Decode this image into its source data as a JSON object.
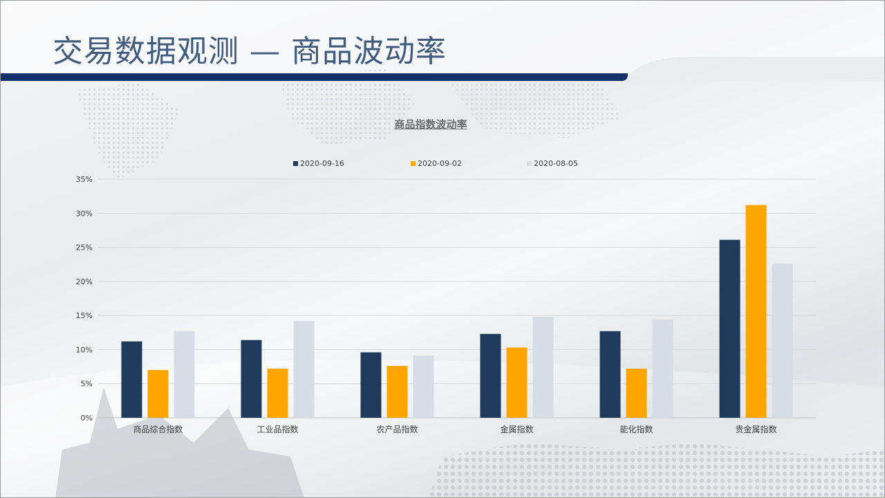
{
  "slide": {
    "title": "交易数据观测 — 商品波动率"
  },
  "colors": {
    "title_bar": "#13306a",
    "title_text": "#3f5a7c"
  },
  "chart_data": {
    "type": "bar",
    "title": "商品指数波动率",
    "xlabel": "",
    "ylabel": "",
    "categories": [
      "商品综合指数",
      "工业品指数",
      "农产品指数",
      "金属指数",
      "能化指数",
      "贵金属指数"
    ],
    "series": [
      {
        "name": "2020-09-16",
        "color": "#1f3a5a",
        "values": [
          11.2,
          11.4,
          9.6,
          12.3,
          12.7,
          26.1
        ]
      },
      {
        "name": "2020-09-02",
        "color": "#ffa500",
        "values": [
          7.0,
          7.2,
          7.6,
          10.3,
          7.2,
          31.2
        ]
      },
      {
        "name": "2020-08-05",
        "color": "#d6dde6",
        "values": [
          12.7,
          14.2,
          9.1,
          14.8,
          14.4,
          22.6
        ]
      }
    ],
    "ylim": [
      0,
      35
    ],
    "yticks": [
      0,
      5,
      10,
      15,
      20,
      25,
      30,
      35
    ],
    "ytick_labels": [
      "0%",
      "5%",
      "10%",
      "15%",
      "20%",
      "25%",
      "30%",
      "35%"
    ],
    "grid": true,
    "legend_position": "top"
  }
}
